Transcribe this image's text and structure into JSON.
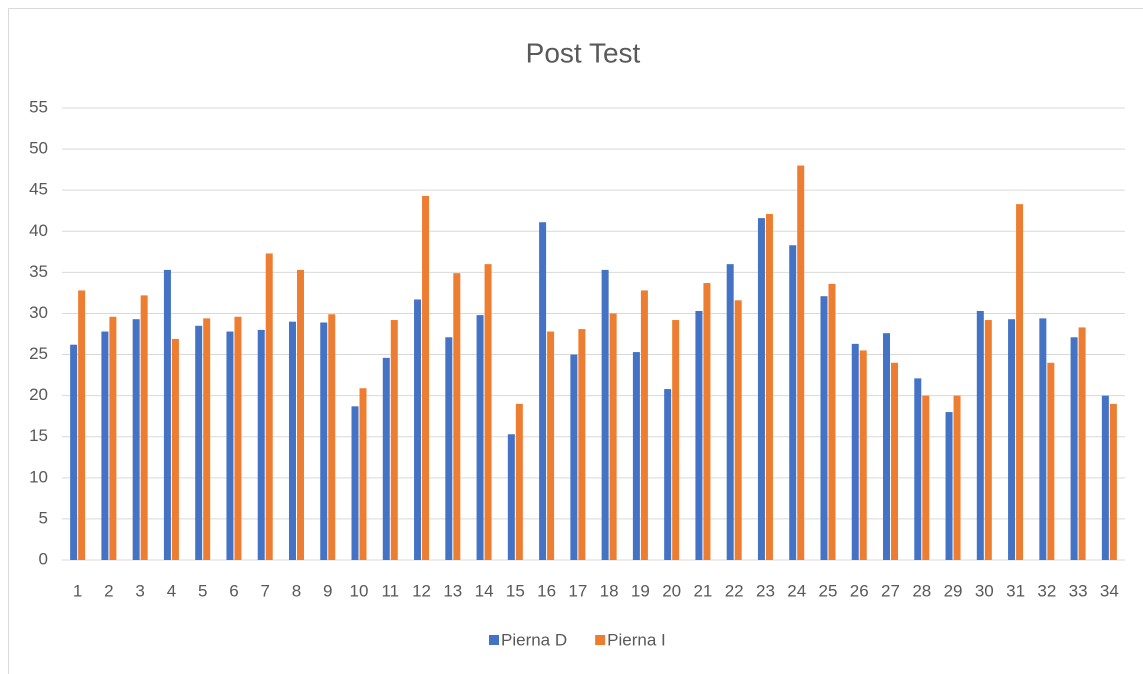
{
  "chart_data": {
    "type": "bar",
    "title": "Post Test",
    "categories": [
      "1",
      "2",
      "3",
      "4",
      "5",
      "6",
      "7",
      "8",
      "9",
      "10",
      "11",
      "12",
      "13",
      "14",
      "15",
      "16",
      "17",
      "18",
      "19",
      "20",
      "21",
      "22",
      "23",
      "24",
      "25",
      "26",
      "27",
      "28",
      "29",
      "30",
      "31",
      "32",
      "33",
      "34"
    ],
    "series": [
      {
        "name": "Pierna D",
        "color": "#4472c4",
        "values": [
          26.2,
          27.8,
          29.3,
          35.3,
          28.5,
          27.8,
          28,
          29,
          28.9,
          18.7,
          24.6,
          31.7,
          27.1,
          29.8,
          15.3,
          41.1,
          25,
          35.3,
          25.3,
          20.8,
          30.3,
          36,
          41.6,
          38.3,
          32.1,
          26.3,
          27.6,
          22.1,
          18,
          30.3,
          29.3,
          29.4,
          27.1,
          20
        ]
      },
      {
        "name": "Pierna I",
        "color": "#ed7d31",
        "values": [
          32.8,
          29.6,
          32.2,
          26.9,
          29.4,
          29.6,
          37.3,
          35.3,
          29.9,
          20.9,
          29.2,
          44.3,
          34.9,
          36,
          19,
          27.8,
          28.1,
          30,
          32.8,
          29.2,
          33.7,
          31.6,
          42.1,
          48,
          33.6,
          25.5,
          24,
          20,
          20,
          29.2,
          43.3,
          24,
          28.3,
          19
        ]
      }
    ],
    "ylim": [
      0,
      55
    ],
    "yticks": [
      0,
      5,
      10,
      15,
      20,
      25,
      30,
      35,
      40,
      45,
      50,
      55
    ],
    "grid": true,
    "legend": "bottom"
  }
}
